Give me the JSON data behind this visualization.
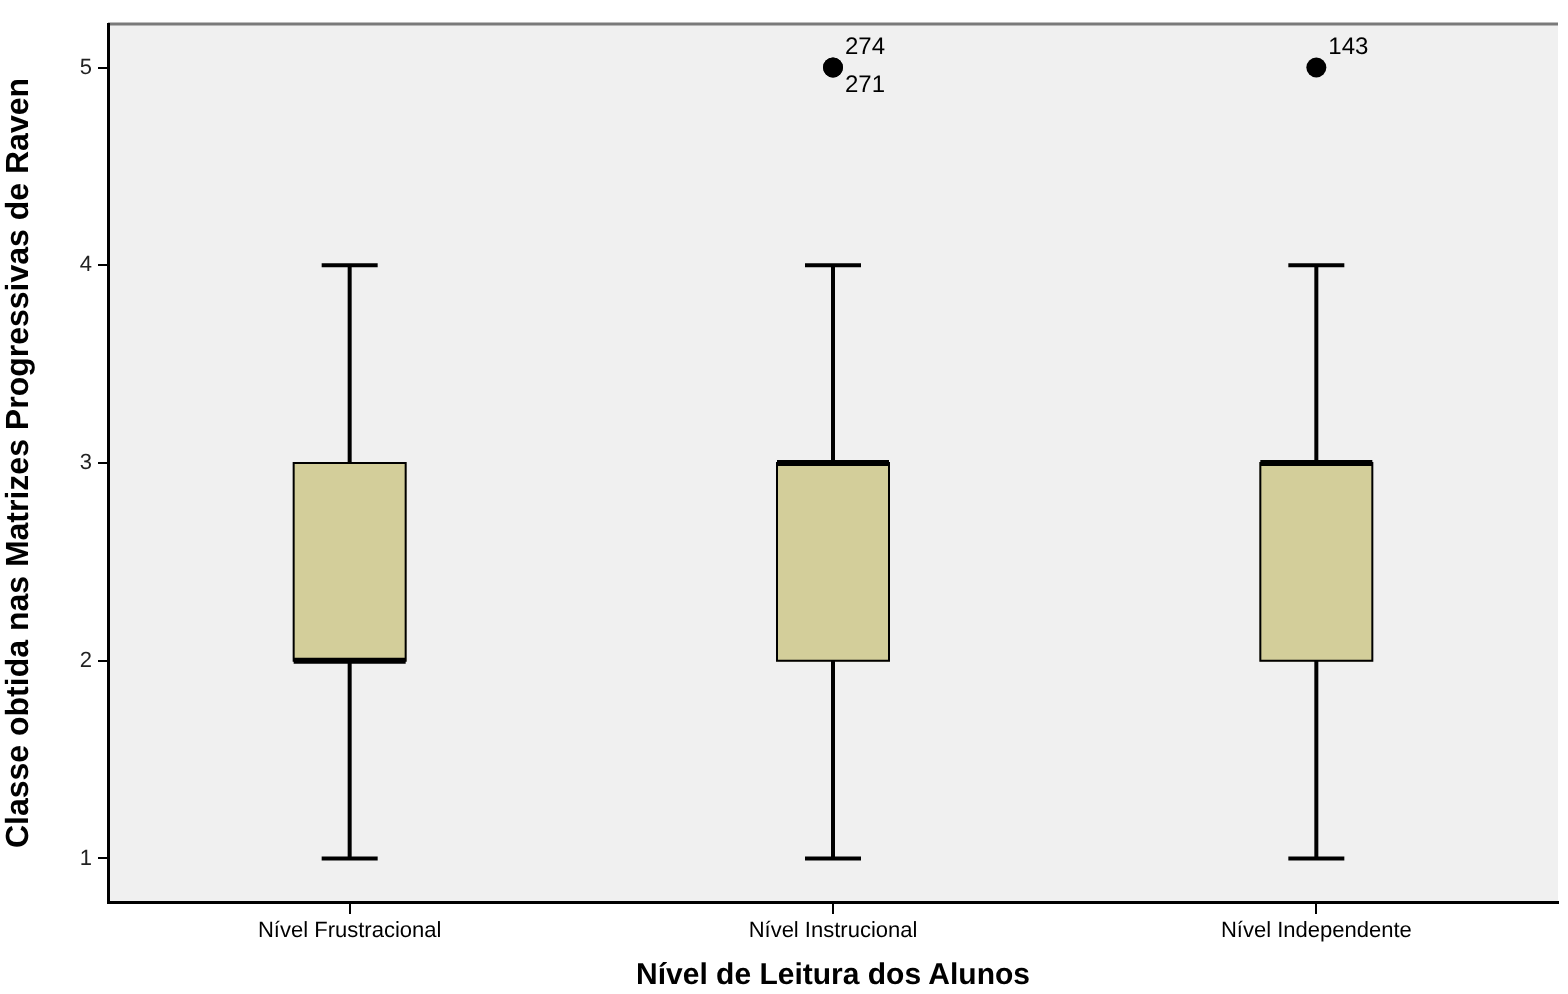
{
  "chart_data": {
    "type": "box",
    "xlabel": "Nível de Leitura dos Alunos",
    "ylabel": "Classe obtida nas Matrizes Progressivas de Raven",
    "categories": [
      "Nível Frustracional",
      "Nível Instrucional",
      "Nível Independente"
    ],
    "color": "#d3ce9a",
    "boxes": [
      {
        "low": 1,
        "q1": 2,
        "median": 2,
        "q3": 3,
        "high": 4
      },
      {
        "low": 1,
        "q1": 2,
        "median": 3,
        "q3": 3,
        "high": 4,
        "outliers": [
          5,
          5
        ]
      },
      {
        "low": 1,
        "q1": 2,
        "median": 3,
        "q3": 3,
        "high": 4,
        "outliers": [
          5
        ]
      }
    ],
    "ylim": [
      0.78,
      5.22
    ],
    "yticks": [
      1,
      2,
      3,
      4,
      5
    ],
    "annotations": [
      "274",
      "271",
      "143"
    ]
  }
}
